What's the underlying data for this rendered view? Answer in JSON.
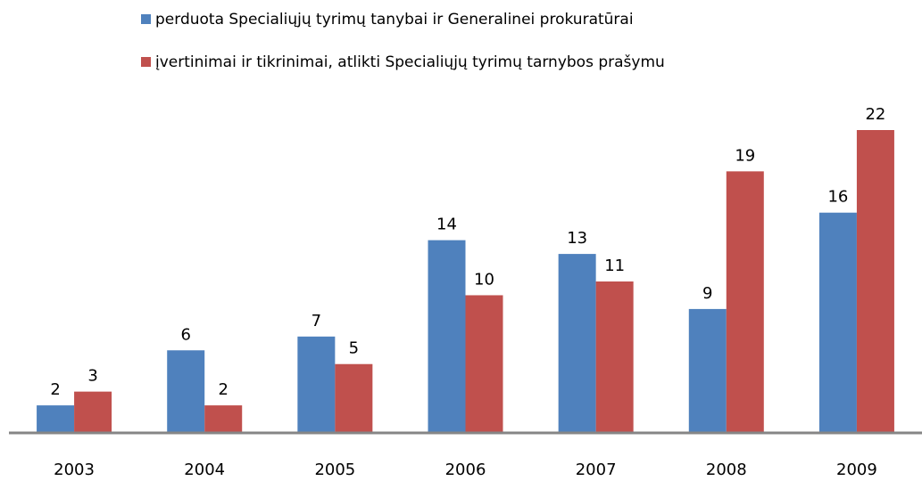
{
  "chart_data": {
    "type": "bar",
    "categories": [
      "2003",
      "2004",
      "2005",
      "2006",
      "2007",
      "2008",
      "2009"
    ],
    "series": [
      {
        "name": "perduota Specialiųjų tyrimų tanybai  ir Generalinei prokuratūrai",
        "color": "#4f81bd",
        "values": [
          2,
          6,
          7,
          14,
          13,
          9,
          16
        ]
      },
      {
        "name": "įvertinimai ir tikrinimai,  atlikti Specialiųjų tyrimų tarnybos prašymu",
        "color": "#c0504d",
        "values": [
          3,
          2,
          5,
          10,
          11,
          19,
          22
        ]
      }
    ]
  }
}
